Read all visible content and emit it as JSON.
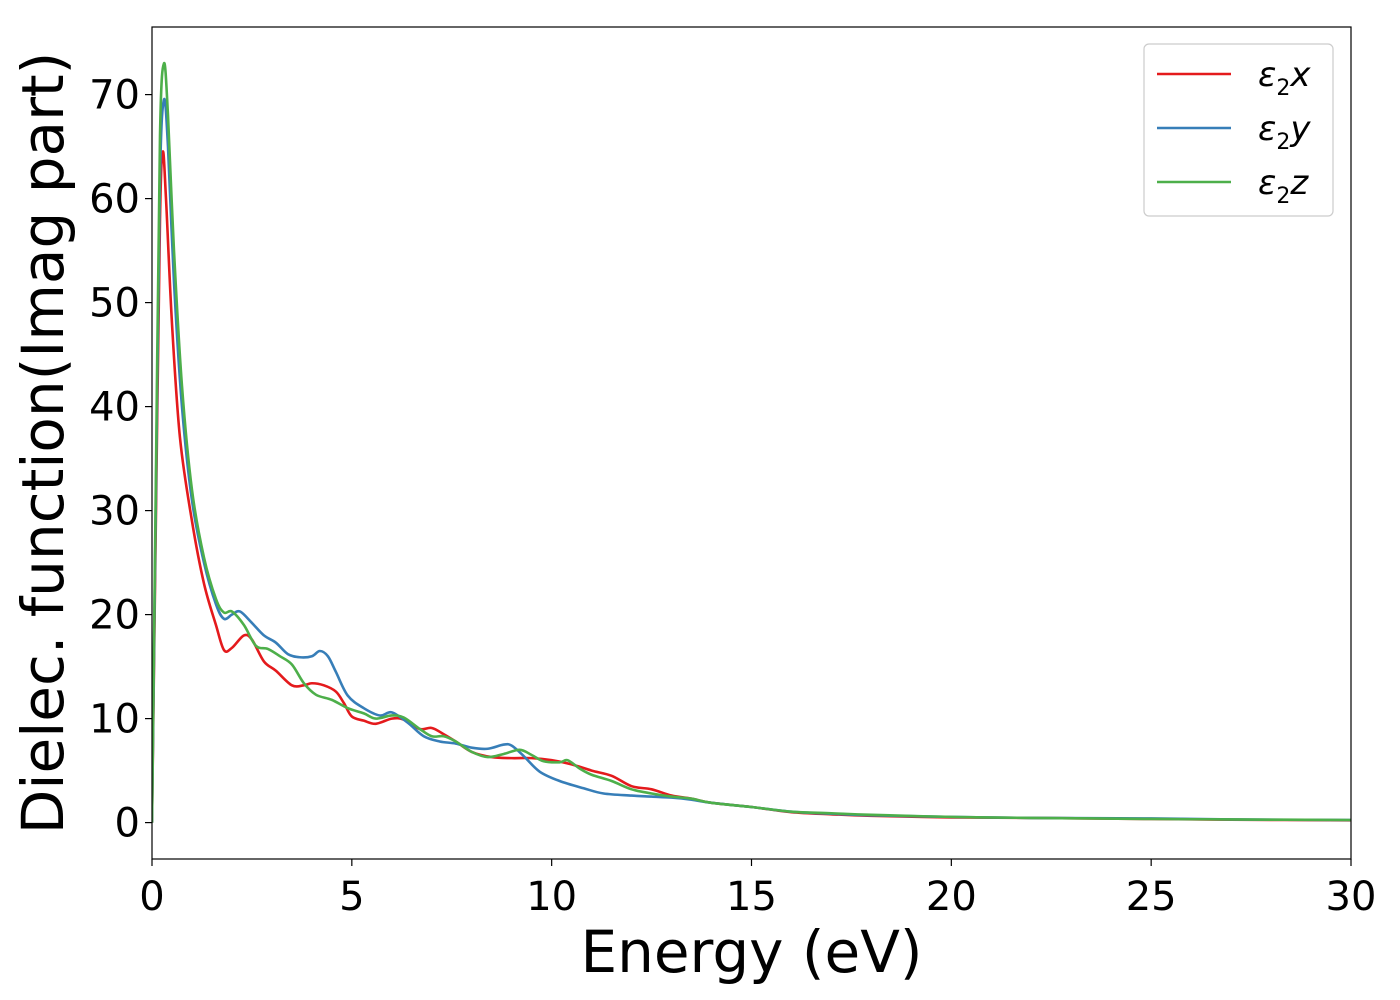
{
  "chart_data": {
    "type": "line",
    "xlabel": "Energy (eV)",
    "ylabel": "Dielec. function(Imag part)",
    "xlim": [
      0,
      30
    ],
    "ylim": [
      -3.5,
      76.5
    ],
    "x_ticks": [
      0,
      5,
      10,
      15,
      20,
      25,
      30
    ],
    "y_ticks": [
      0,
      10,
      20,
      30,
      40,
      50,
      60,
      70
    ],
    "grid": false,
    "legend_position": "top-right",
    "series": [
      {
        "name": "ε2x",
        "legend": {
          "symbol": "ε",
          "sub": "2",
          "var": "x"
        },
        "color": "#e41a1c",
        "points": [
          [
            0,
            0
          ],
          [
            0.1,
            30
          ],
          [
            0.2,
            58
          ],
          [
            0.27,
            64.5
          ],
          [
            0.35,
            60
          ],
          [
            0.5,
            48
          ],
          [
            0.7,
            37
          ],
          [
            1.0,
            29
          ],
          [
            1.3,
            23
          ],
          [
            1.6,
            19
          ],
          [
            1.8,
            16.6
          ],
          [
            2.0,
            16.8
          ],
          [
            2.3,
            18.0
          ],
          [
            2.5,
            17.6
          ],
          [
            2.8,
            15.5
          ],
          [
            3.1,
            14.6
          ],
          [
            3.5,
            13.2
          ],
          [
            3.8,
            13.2
          ],
          [
            4.0,
            13.4
          ],
          [
            4.3,
            13.2
          ],
          [
            4.6,
            12.6
          ],
          [
            4.8,
            11.5
          ],
          [
            5.0,
            10.2
          ],
          [
            5.3,
            9.8
          ],
          [
            5.6,
            9.5
          ],
          [
            6.0,
            10.0
          ],
          [
            6.3,
            9.9
          ],
          [
            6.7,
            9.0
          ],
          [
            7.0,
            9.1
          ],
          [
            7.3,
            8.5
          ],
          [
            7.6,
            7.8
          ],
          [
            8.0,
            6.8
          ],
          [
            8.5,
            6.3
          ],
          [
            9.0,
            6.2
          ],
          [
            9.5,
            6.2
          ],
          [
            10.0,
            6.0
          ],
          [
            10.5,
            5.6
          ],
          [
            11.0,
            5.0
          ],
          [
            11.5,
            4.5
          ],
          [
            12.0,
            3.5
          ],
          [
            12.5,
            3.2
          ],
          [
            13.0,
            2.6
          ],
          [
            13.5,
            2.3
          ],
          [
            14.0,
            1.9
          ],
          [
            15.0,
            1.5
          ],
          [
            16.0,
            1.0
          ],
          [
            17.0,
            0.8
          ],
          [
            18.0,
            0.65
          ],
          [
            20.0,
            0.5
          ],
          [
            22.0,
            0.45
          ],
          [
            25.0,
            0.35
          ],
          [
            27.0,
            0.28
          ],
          [
            30.0,
            0.22
          ]
        ]
      },
      {
        "name": "ε2y",
        "legend": {
          "symbol": "ε",
          "sub": "2",
          "var": "y"
        },
        "color": "#377eb8",
        "points": [
          [
            0,
            0
          ],
          [
            0.1,
            32
          ],
          [
            0.2,
            62
          ],
          [
            0.3,
            69.5
          ],
          [
            0.4,
            65
          ],
          [
            0.55,
            52
          ],
          [
            0.75,
            40
          ],
          [
            1.0,
            31
          ],
          [
            1.3,
            25
          ],
          [
            1.6,
            21
          ],
          [
            1.8,
            19.6
          ],
          [
            2.0,
            20.0
          ],
          [
            2.2,
            20.3
          ],
          [
            2.5,
            19.2
          ],
          [
            2.8,
            18.0
          ],
          [
            3.1,
            17.3
          ],
          [
            3.4,
            16.2
          ],
          [
            3.7,
            15.9
          ],
          [
            4.0,
            16.0
          ],
          [
            4.2,
            16.5
          ],
          [
            4.4,
            16.0
          ],
          [
            4.6,
            14.5
          ],
          [
            4.9,
            12.2
          ],
          [
            5.3,
            11.0
          ],
          [
            5.7,
            10.3
          ],
          [
            6.0,
            10.6
          ],
          [
            6.4,
            9.6
          ],
          [
            6.8,
            8.3
          ],
          [
            7.2,
            7.8
          ],
          [
            7.6,
            7.6
          ],
          [
            8.0,
            7.2
          ],
          [
            8.4,
            7.1
          ],
          [
            8.8,
            7.5
          ],
          [
            9.0,
            7.4
          ],
          [
            9.3,
            6.4
          ],
          [
            9.7,
            4.9
          ],
          [
            10.2,
            4.0
          ],
          [
            10.8,
            3.3
          ],
          [
            11.3,
            2.8
          ],
          [
            12.0,
            2.6
          ],
          [
            12.5,
            2.5
          ],
          [
            13.0,
            2.4
          ],
          [
            13.5,
            2.2
          ],
          [
            14.0,
            1.9
          ],
          [
            15.0,
            1.5
          ],
          [
            16.0,
            1.05
          ],
          [
            17.0,
            0.85
          ],
          [
            18.0,
            0.7
          ],
          [
            20.0,
            0.55
          ],
          [
            22.0,
            0.45
          ],
          [
            25.0,
            0.4
          ],
          [
            27.0,
            0.3
          ],
          [
            30.0,
            0.25
          ]
        ]
      },
      {
        "name": "ε2z",
        "legend": {
          "symbol": "ε",
          "sub": "2",
          "var": "z"
        },
        "color": "#4daf4a",
        "points": [
          [
            0,
            0
          ],
          [
            0.1,
            34
          ],
          [
            0.2,
            66
          ],
          [
            0.3,
            73
          ],
          [
            0.4,
            68
          ],
          [
            0.55,
            55
          ],
          [
            0.75,
            42
          ],
          [
            1.0,
            32
          ],
          [
            1.3,
            25.5
          ],
          [
            1.6,
            21.5
          ],
          [
            1.8,
            20.2
          ],
          [
            2.0,
            20.3
          ],
          [
            2.3,
            19.0
          ],
          [
            2.6,
            17.0
          ],
          [
            2.9,
            16.7
          ],
          [
            3.2,
            16.0
          ],
          [
            3.5,
            15.2
          ],
          [
            3.8,
            13.4
          ],
          [
            4.1,
            12.3
          ],
          [
            4.5,
            11.8
          ],
          [
            4.9,
            11.0
          ],
          [
            5.3,
            10.5
          ],
          [
            5.6,
            10.0
          ],
          [
            6.0,
            10.3
          ],
          [
            6.3,
            10.1
          ],
          [
            6.7,
            9.0
          ],
          [
            7.0,
            8.3
          ],
          [
            7.3,
            8.3
          ],
          [
            7.6,
            7.8
          ],
          [
            8.0,
            6.8
          ],
          [
            8.4,
            6.3
          ],
          [
            8.8,
            6.6
          ],
          [
            9.2,
            7.0
          ],
          [
            9.5,
            6.5
          ],
          [
            9.8,
            5.9
          ],
          [
            10.2,
            5.8
          ],
          [
            10.4,
            6.0
          ],
          [
            10.7,
            5.2
          ],
          [
            11.0,
            4.6
          ],
          [
            11.5,
            4.0
          ],
          [
            12.0,
            3.2
          ],
          [
            12.5,
            2.8
          ],
          [
            13.0,
            2.5
          ],
          [
            13.5,
            2.3
          ],
          [
            14.0,
            1.9
          ],
          [
            15.0,
            1.5
          ],
          [
            16.0,
            1.05
          ],
          [
            17.0,
            0.9
          ],
          [
            18.0,
            0.75
          ],
          [
            20.0,
            0.55
          ],
          [
            22.0,
            0.45
          ],
          [
            25.0,
            0.35
          ],
          [
            27.0,
            0.3
          ],
          [
            30.0,
            0.25
          ]
        ]
      }
    ]
  }
}
